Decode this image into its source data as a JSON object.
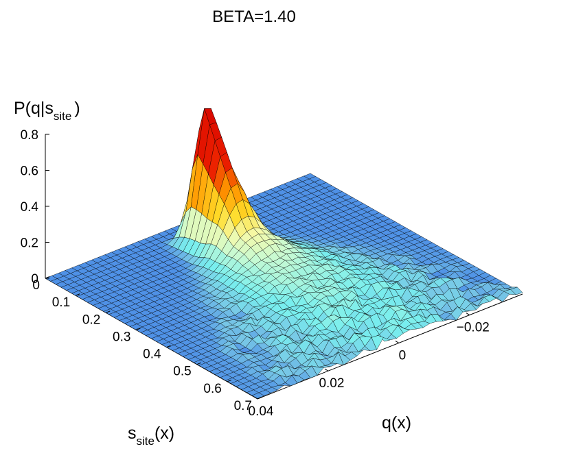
{
  "chart_data": {
    "type": "surface",
    "title": "BETA=1.40",
    "zlabel": {
      "main": "P(q|s",
      "sub": "site",
      "close": ")"
    },
    "ylabel": {
      "main": "s",
      "sub": "site",
      "tail": "(x)"
    },
    "xlabel": "q(x)",
    "x_axis": {
      "name": "q(x)",
      "range": [
        -0.035,
        0.04
      ],
      "ticks": [
        0.04,
        0.02,
        0,
        -0.02
      ],
      "tick_labels": [
        "0.04",
        "0.02",
        "0",
        "−0.02"
      ]
    },
    "y_axis": {
      "name": "s_site(x)",
      "range": [
        0,
        0.7
      ],
      "ticks": [
        0,
        0.1,
        0.2,
        0.3,
        0.4,
        0.5,
        0.6,
        0.7
      ],
      "tick_labels": [
        "0",
        "0.1",
        "0.2",
        "0.3",
        "0.4",
        "0.5",
        "0.6",
        "0.7"
      ]
    },
    "z_axis": {
      "name": "P(q|s_site)",
      "range": [
        0,
        0.8
      ],
      "ticks": [
        0,
        0.2,
        0.4,
        0.6,
        0.8
      ],
      "tick_labels": [
        "0",
        "0.2",
        "0.4",
        "0.6",
        "0.8"
      ]
    },
    "colormap": "jet-like (blue = 0, red = 0.8)",
    "surface_description": "Probability distribution P(q|s_site) as a function of overlap q and site overlap s_site. Sharp peak (~0.8) at s_site near 0.1 and q near 0; ridge spreads and decreases in height along increasing s_site, staying near q = 0.",
    "surface_profile": [
      {
        "s_site": 0.08,
        "peak_height": 0.8,
        "width_q": 0.004
      },
      {
        "s_site": 0.15,
        "peak_height": 0.5,
        "width_q": 0.005
      },
      {
        "s_site": 0.22,
        "peak_height": 0.2,
        "width_q": 0.008
      },
      {
        "s_site": 0.3,
        "peak_height": 0.12,
        "width_q": 0.012
      },
      {
        "s_site": 0.4,
        "peak_height": 0.08,
        "width_q": 0.016
      },
      {
        "s_site": 0.5,
        "peak_height": 0.06,
        "width_q": 0.02
      },
      {
        "s_site": 0.6,
        "peak_height": 0.05,
        "width_q": 0.022
      },
      {
        "s_site": 0.7,
        "peak_height": 0.04,
        "width_q": 0.024
      }
    ]
  }
}
